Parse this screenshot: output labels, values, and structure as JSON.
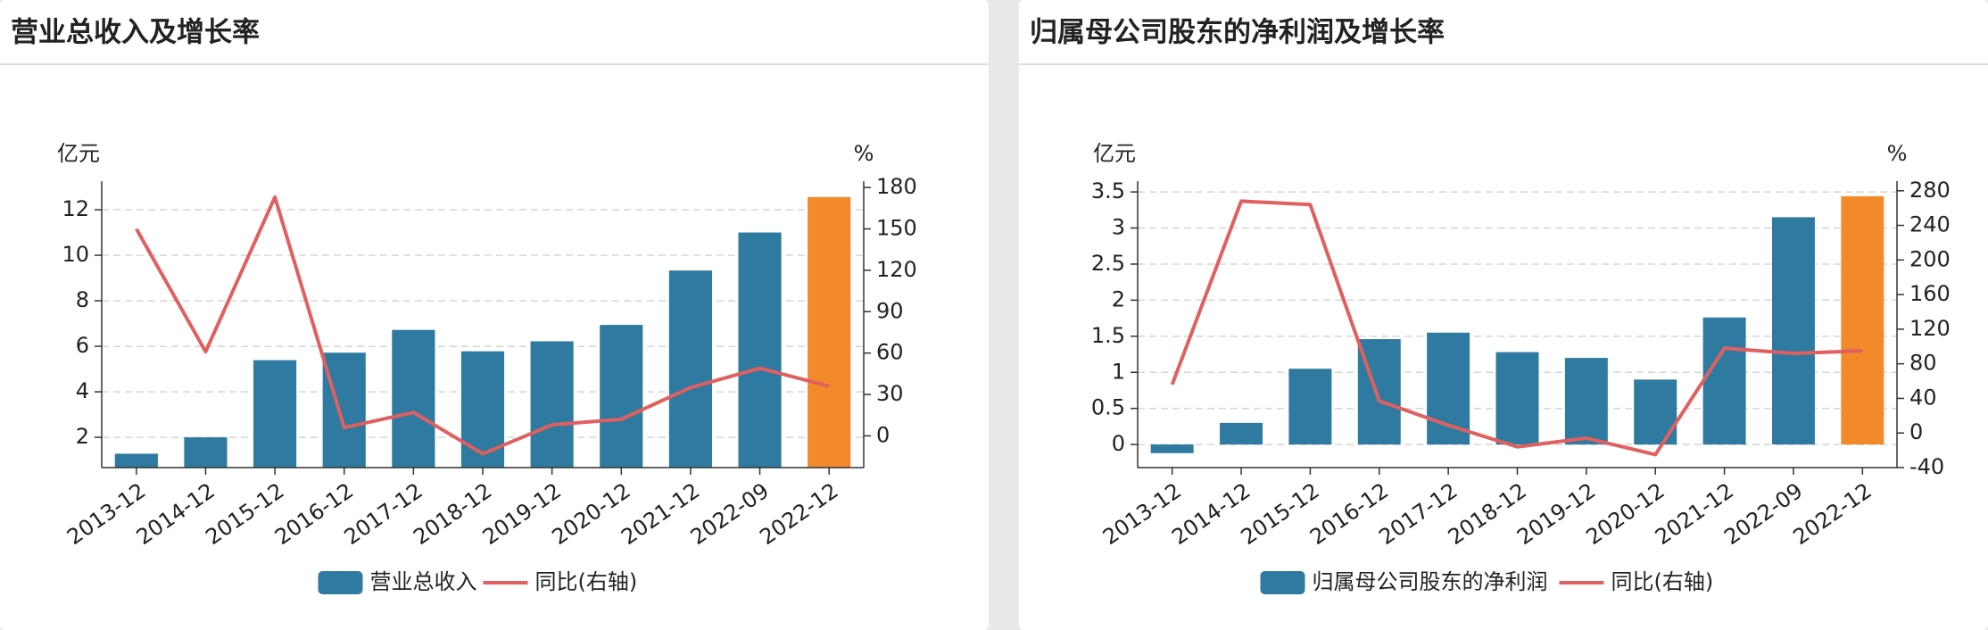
{
  "chart_data": [
    {
      "type": "bar_line",
      "title": "营业总收入及增长率",
      "y_label": "亿元",
      "y2_label": "%",
      "categories": [
        "2013-12",
        "2014-12",
        "2015-12",
        "2016-12",
        "2017-12",
        "2018-12",
        "2019-12",
        "2020-12",
        "2021-12",
        "2022-09",
        "2022-12"
      ],
      "series": [
        {
          "name": "营业总收入",
          "type": "bar",
          "color": "#2e7aa0",
          "values": [
            1.28,
            2.0,
            5.39,
            5.72,
            6.72,
            5.78,
            6.22,
            6.94,
            9.33,
            11.0,
            12.56
          ],
          "point_colors": [
            "#2e7aa0",
            "#2e7aa0",
            "#2e7aa0",
            "#2e7aa0",
            "#2e7aa0",
            "#2e7aa0",
            "#2e7aa0",
            "#2e7aa0",
            "#2e7aa0",
            "#2e7aa0",
            "#f28a2c"
          ]
        },
        {
          "name": "同比(右轴)",
          "type": "line",
          "axis": "y2",
          "color": "#e06060",
          "values": [
            150,
            61,
            173,
            6,
            17,
            -13,
            8,
            12,
            35,
            49,
            36
          ]
        }
      ],
      "ylim": [
        0.67,
        13.1
      ],
      "yticks": [
        2,
        4,
        6,
        8,
        10,
        12
      ],
      "y2lim": [
        -23,
        182
      ],
      "y2ticks": [
        0,
        30,
        60,
        90,
        120,
        150,
        180
      ],
      "grid": true
    },
    {
      "type": "bar_line",
      "title": "归属母公司股东的净利润及增长率",
      "y_label": "亿元",
      "y2_label": "%",
      "categories": [
        "2013-12",
        "2014-12",
        "2015-12",
        "2016-12",
        "2017-12",
        "2018-12",
        "2019-12",
        "2020-12",
        "2021-12",
        "2022-09",
        "2022-12"
      ],
      "series": [
        {
          "name": "归属母公司股东的净利润",
          "type": "bar",
          "color": "#2e7aa0",
          "values": [
            -0.12,
            0.3,
            1.05,
            1.46,
            1.55,
            1.28,
            1.2,
            0.9,
            1.76,
            3.15,
            3.44
          ],
          "point_colors": [
            "#2e7aa0",
            "#2e7aa0",
            "#2e7aa0",
            "#2e7aa0",
            "#2e7aa0",
            "#2e7aa0",
            "#2e7aa0",
            "#2e7aa0",
            "#2e7aa0",
            "#2e7aa0",
            "#f28a2c"
          ]
        },
        {
          "name": "同比(右轴)",
          "type": "line",
          "axis": "y2",
          "color": "#e06060",
          "values": [
            56,
            268,
            264,
            37,
            9,
            -16,
            -6,
            -25,
            98,
            92,
            95
          ]
        }
      ],
      "ylim": [
        -0.32,
        3.6
      ],
      "yticks": [
        0,
        0.5,
        1,
        1.5,
        2,
        2.5,
        3,
        3.5
      ],
      "y2lim": [
        -40,
        287
      ],
      "y2ticks": [
        -40,
        0,
        40,
        80,
        120,
        160,
        200,
        240,
        280
      ],
      "grid": true
    }
  ]
}
